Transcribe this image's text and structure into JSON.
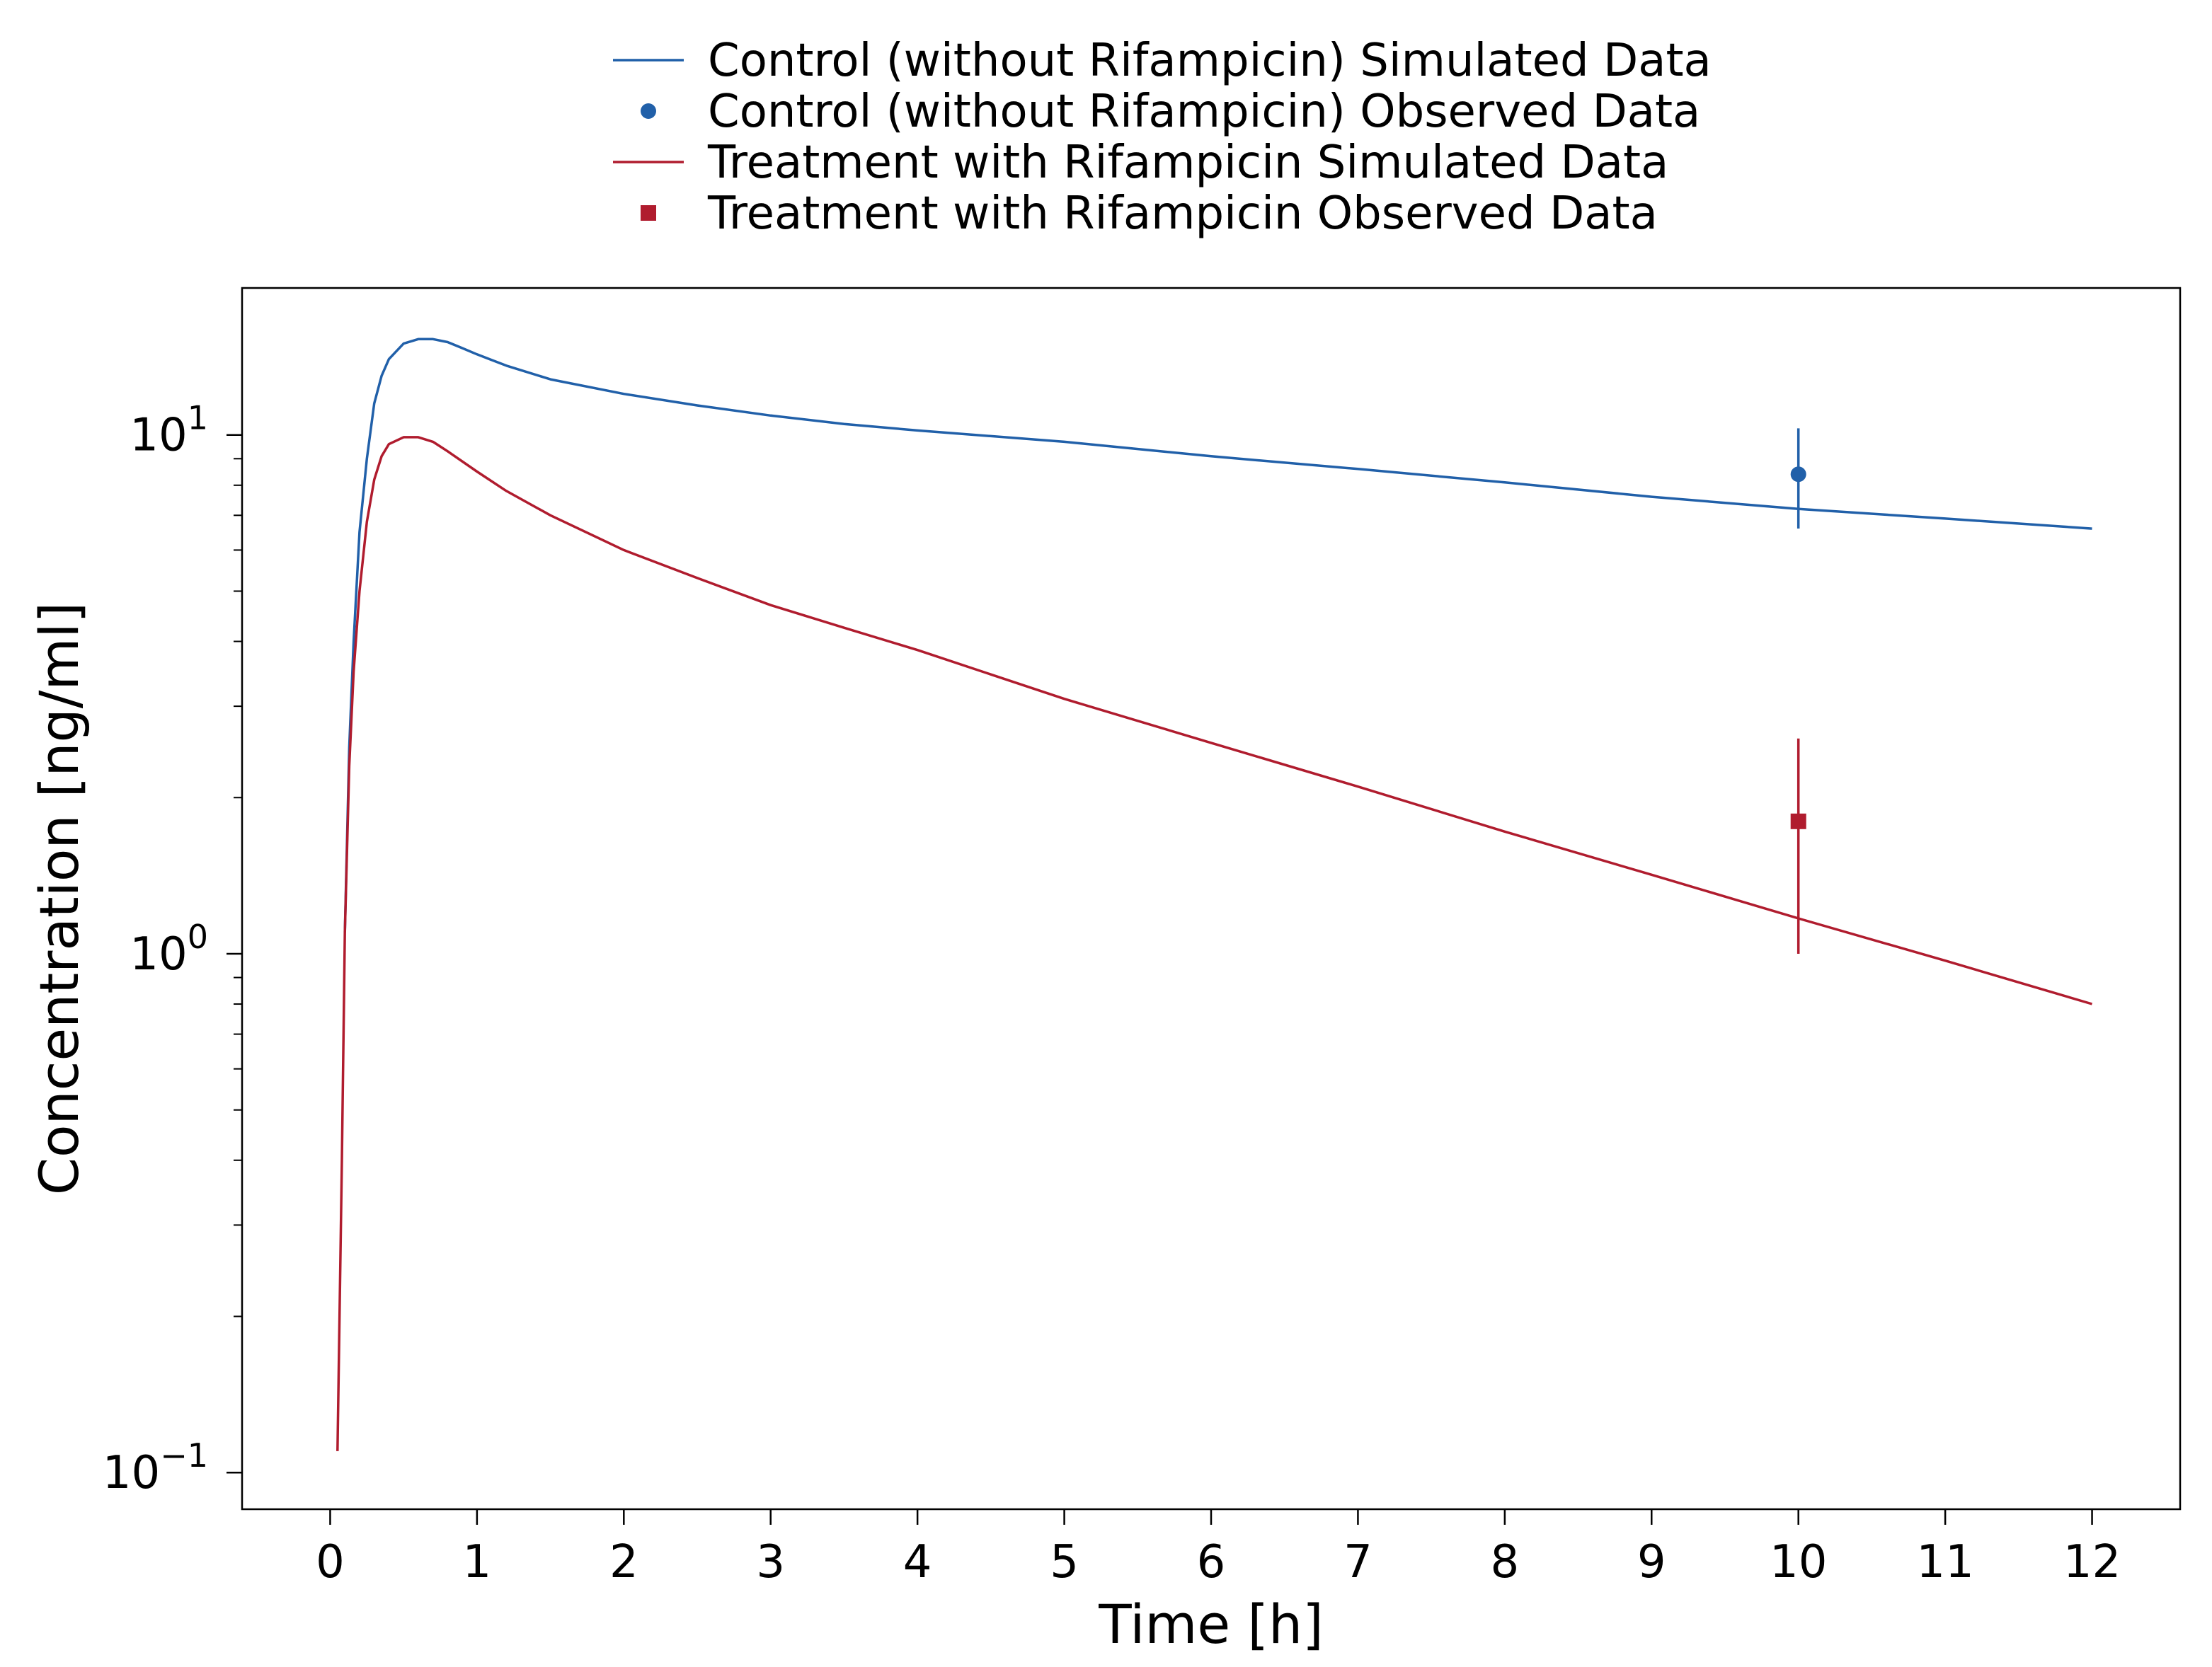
{
  "chart_data": {
    "type": "line",
    "xlabel": "Time [h]",
    "ylabel": "Concentration [ng/ml]",
    "xlim": [
      -0.6,
      12.6
    ],
    "ylim": [
      0.085,
      19.2
    ],
    "yscale": "log",
    "grid": false,
    "legend_position": "top-center",
    "x_ticks": [
      0,
      1,
      2,
      3,
      4,
      5,
      6,
      7,
      8,
      9,
      10,
      11,
      12
    ],
    "y_ticks": [
      {
        "value": 0.1,
        "base": "10",
        "exp": "−1"
      },
      {
        "value": 1,
        "base": "10",
        "exp": "0"
      },
      {
        "value": 10,
        "base": "10",
        "exp": "1"
      }
    ],
    "series": [
      {
        "name": "Control (without Rifampicin) Simulated Data",
        "kind": "line",
        "color": "#2160a9",
        "x": [
          0.1,
          0.13,
          0.16,
          0.2,
          0.25,
          0.3,
          0.35,
          0.4,
          0.5,
          0.6,
          0.7,
          0.8,
          0.9,
          1.0,
          1.2,
          1.5,
          2.0,
          2.5,
          3.0,
          3.5,
          4.0,
          5.0,
          6.0,
          7.0,
          8.0,
          9.0,
          10.0,
          11.0,
          12.0
        ],
        "y": [
          1.1,
          2.5,
          4.0,
          6.5,
          9.0,
          11.5,
          13.0,
          14.0,
          15.0,
          15.3,
          15.3,
          15.1,
          14.7,
          14.3,
          13.6,
          12.8,
          12.0,
          11.4,
          10.9,
          10.5,
          10.2,
          9.7,
          9.1,
          8.6,
          8.1,
          7.6,
          7.2,
          6.9,
          6.6
        ]
      },
      {
        "name": "Control (without Rifampicin) Observed Data",
        "kind": "marker",
        "marker": "circle",
        "color": "#2160a9",
        "x": [
          10
        ],
        "y": [
          8.4
        ],
        "err_low": [
          6.6
        ],
        "err_high": [
          10.3
        ]
      },
      {
        "name": "Treatment with Rifampicin Simulated Data",
        "kind": "line",
        "color": "#b01c2e",
        "x": [
          0.05,
          0.08,
          0.1,
          0.13,
          0.16,
          0.2,
          0.25,
          0.3,
          0.35,
          0.4,
          0.5,
          0.6,
          0.7,
          0.8,
          1.0,
          1.2,
          1.5,
          2.0,
          2.5,
          3.0,
          3.5,
          4.0,
          5.0,
          6.0,
          7.0,
          8.0,
          9.0,
          10.0,
          11.0,
          12.0
        ],
        "y": [
          0.11,
          0.4,
          1.1,
          2.3,
          3.5,
          5.0,
          6.8,
          8.2,
          9.1,
          9.6,
          9.9,
          9.9,
          9.7,
          9.3,
          8.5,
          7.8,
          7.0,
          6.0,
          5.3,
          4.7,
          4.25,
          3.85,
          3.1,
          2.55,
          2.1,
          1.72,
          1.42,
          1.17,
          0.97,
          0.8
        ]
      },
      {
        "name": "Treatment with Rifampicin Observed Data",
        "kind": "marker",
        "marker": "square",
        "color": "#b01c2e",
        "x": [
          10
        ],
        "y": [
          1.8
        ],
        "err_low": [
          1.0
        ],
        "err_high": [
          2.6
        ]
      }
    ]
  }
}
